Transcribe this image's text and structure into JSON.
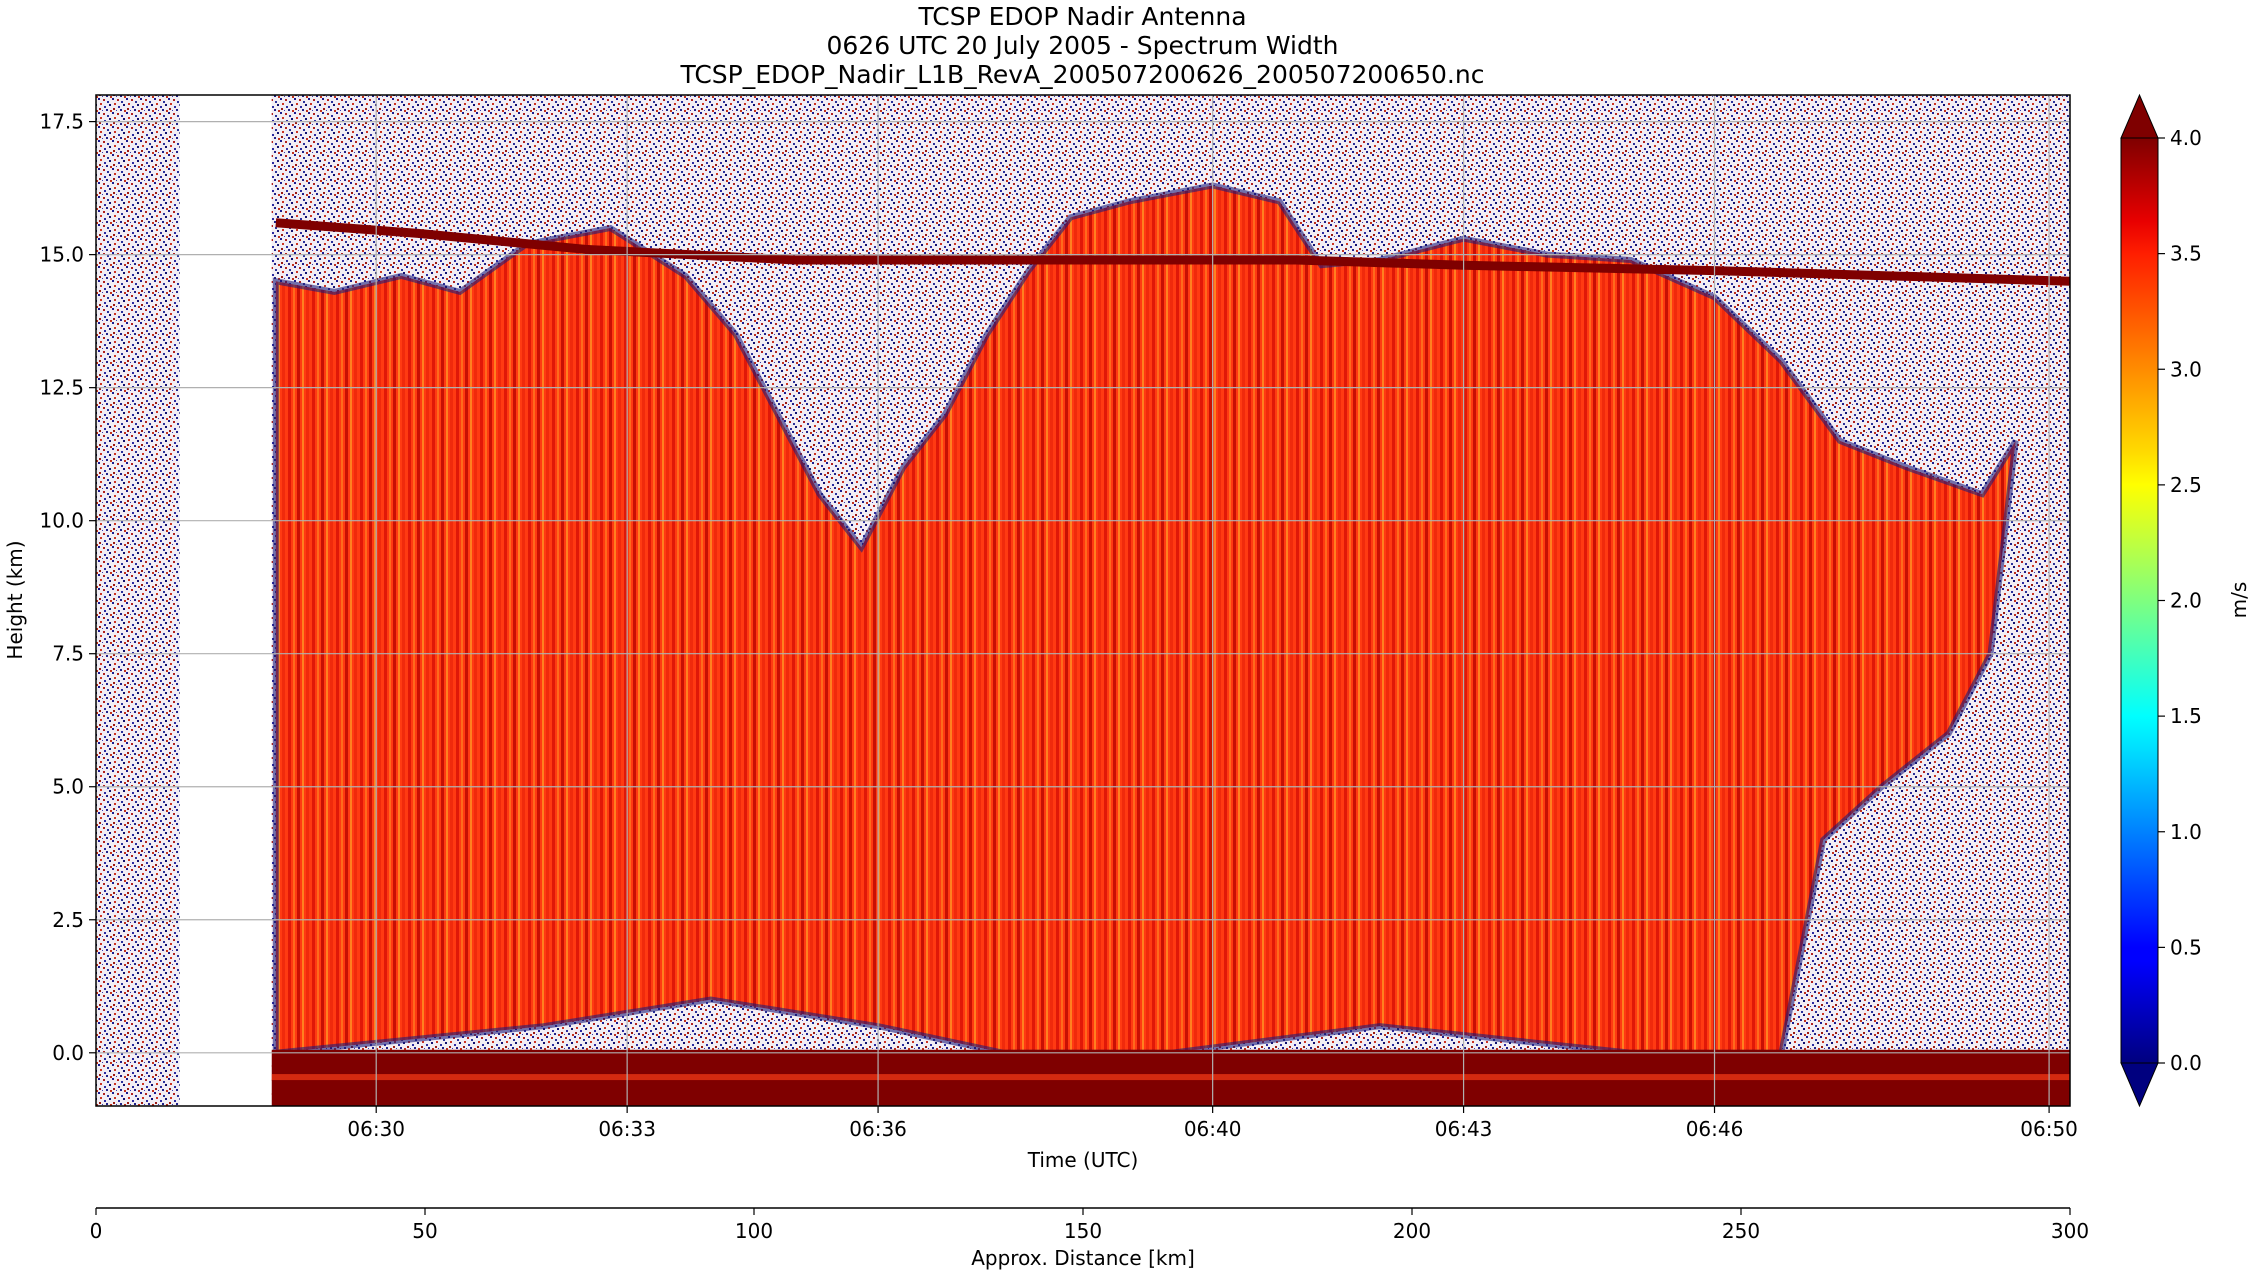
{
  "title_lines": [
    "TCSP EDOP Nadir Antenna",
    "0626 UTC 20 July 2005 - Spectrum Width",
    "TCSP_EDOP_Nadir_L1B_RevA_200507200626_200507200650.nc"
  ],
  "chart_data": {
    "type": "heatmap",
    "title": "TCSP EDOP Nadir Antenna",
    "subtitle": "0626 UTC 20 July 2005 - Spectrum Width",
    "file_name": "TCSP_EDOP_Nadir_L1B_RevA_200507200626_200507200650.nc",
    "xlabel": "Time (UTC)",
    "ylabel": "Height (km)",
    "x2label": "Approx. Distance [km]",
    "x_ticks": [
      "06:30",
      "06:33",
      "06:36",
      "06:40",
      "06:43",
      "06:46",
      "06:50"
    ],
    "x_tick_minutes": [
      30,
      33,
      36,
      40,
      43,
      46,
      50
    ],
    "xlim_minutes": [
      26.65,
      50.25
    ],
    "y_ticks": [
      "0.0",
      "2.5",
      "5.0",
      "7.5",
      "10.0",
      "12.5",
      "15.0",
      "17.5"
    ],
    "y_tick_values": [
      0,
      2.5,
      5,
      7.5,
      10,
      12.5,
      15,
      17.5
    ],
    "ylim": [
      -1.0,
      18.0
    ],
    "x2_ticks": [
      "0",
      "50",
      "100",
      "150",
      "200",
      "250",
      "300"
    ],
    "x2_tick_values": [
      0,
      50,
      100,
      150,
      200,
      250,
      300
    ],
    "x2lim": [
      0,
      300
    ],
    "grid": true,
    "colorbar": {
      "label": "m/s",
      "ticks": [
        "0.0",
        "0.5",
        "1.0",
        "1.5",
        "2.0",
        "2.5",
        "3.0",
        "3.5",
        "4.0"
      ],
      "tick_values": [
        0,
        0.5,
        1,
        1.5,
        2,
        2.5,
        3,
        3.5,
        4
      ],
      "range": [
        0,
        4
      ],
      "colormap": "jet",
      "extend": "both"
    },
    "tropopause_echo_km": [
      [
        28.8,
        15.6
      ],
      [
        30.5,
        15.4
      ],
      [
        32.5,
        15.1
      ],
      [
        35.0,
        14.9
      ],
      [
        38.0,
        14.9
      ],
      [
        41.0,
        14.9
      ],
      [
        43.0,
        14.8
      ],
      [
        46.0,
        14.7
      ],
      [
        50.25,
        14.5
      ]
    ],
    "cloud_top_km": [
      [
        28.8,
        14.5
      ],
      [
        29.5,
        14.3
      ],
      [
        30.3,
        14.6
      ],
      [
        31.0,
        14.3
      ],
      [
        31.8,
        15.2
      ],
      [
        32.8,
        15.5
      ],
      [
        33.7,
        14.6
      ],
      [
        34.3,
        13.5
      ],
      [
        34.8,
        12.0
      ],
      [
        35.3,
        10.5
      ],
      [
        35.8,
        9.5
      ],
      [
        36.3,
        11.0
      ],
      [
        36.8,
        12.0
      ],
      [
        37.3,
        13.5
      ],
      [
        37.8,
        14.7
      ],
      [
        38.3,
        15.7
      ],
      [
        39.0,
        16.0
      ],
      [
        40.0,
        16.3
      ],
      [
        40.8,
        16.0
      ],
      [
        41.3,
        14.8
      ],
      [
        42.0,
        14.9
      ],
      [
        43.0,
        15.3
      ],
      [
        44.0,
        15.0
      ],
      [
        45.0,
        14.9
      ],
      [
        46.0,
        14.2
      ],
      [
        46.8,
        13.0
      ],
      [
        47.5,
        11.5
      ],
      [
        48.3,
        11.0
      ],
      [
        49.2,
        10.5
      ],
      [
        49.6,
        11.5
      ]
    ],
    "cloud_base_km": [
      [
        28.8,
        0.0
      ],
      [
        32.0,
        0.5
      ],
      [
        34.0,
        1.0
      ],
      [
        36.0,
        0.5
      ],
      [
        37.5,
        0.0
      ],
      [
        38.5,
        0.0
      ],
      [
        39.5,
        0.0
      ],
      [
        42.0,
        0.5
      ],
      [
        45.0,
        0.0
      ],
      [
        46.8,
        0.0
      ],
      [
        47.3,
        4.0
      ],
      [
        48.0,
        5.0
      ],
      [
        48.8,
        6.0
      ],
      [
        49.3,
        7.5
      ]
    ],
    "data_gaps_minutes": [
      [
        27.65,
        28.75
      ]
    ],
    "surface_echo_km": 0.0
  }
}
